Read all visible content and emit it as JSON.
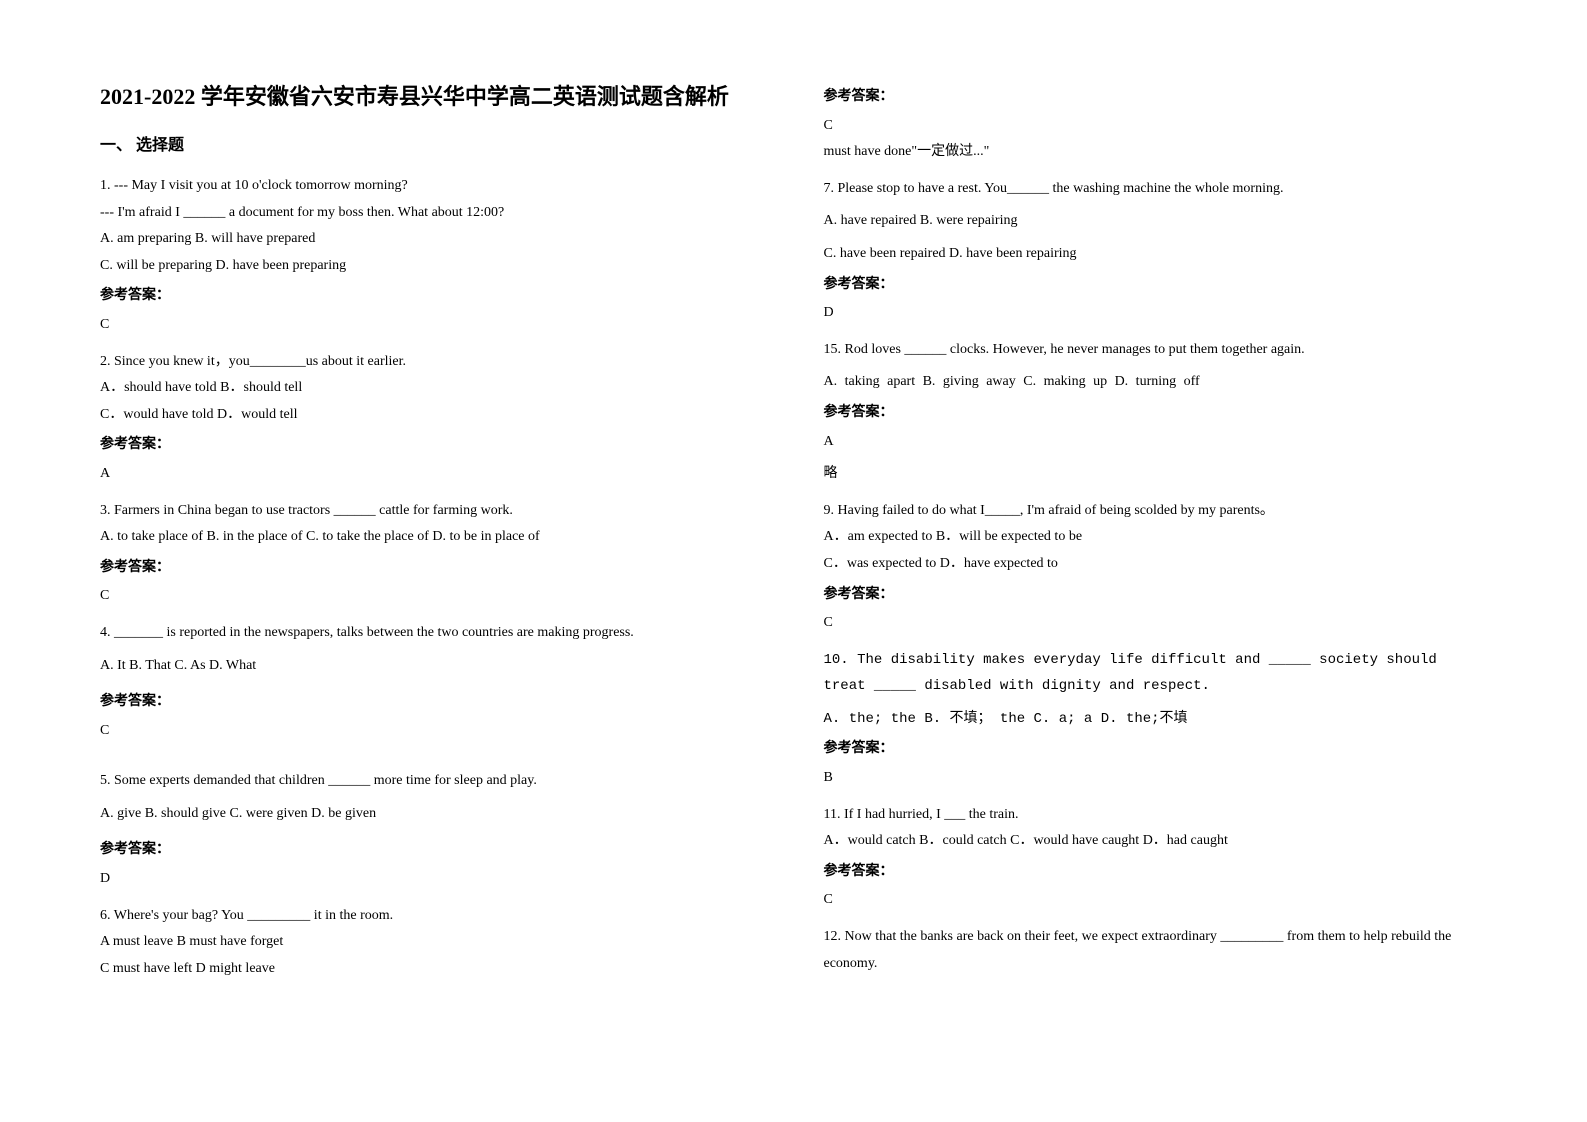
{
  "title": "2021-2022 学年安徽省六安市寿县兴华中学高二英语测试题含解析",
  "section_header": "一、 选择题",
  "answer_label": "参考答案：",
  "left": {
    "q1": {
      "line1": "1. --- May I visit you at 10 o'clock tomorrow morning?",
      "line2": "--- I'm afraid I ______ a document for my boss then. What about 12:00?",
      "optA": "A. am preparing    B. will have prepared",
      "optC": "C. will be preparing    D. have been preparing",
      "answer": "C"
    },
    "q2": {
      "line1": "2. Since you knew it，you________us about it earlier.",
      "optA": "A．should have told        B．should tell",
      "optC": "C．would have told         D．would tell",
      "answer": "A"
    },
    "q3": {
      "line1": "3. Farmers in China began to use tractors ______ cattle for farming work.",
      "options": "A. to take place of   B. in the place of   C. to take the place of   D. to be in place of",
      "answer": "C"
    },
    "q4": {
      "line1": "4. _______ is reported in the newspapers, talks between the two countries are making progress.",
      "options": "A. It       B. That       C. As     D. What",
      "answer": "C"
    },
    "q5": {
      "line1": "5.  Some experts demanded that children ______ more time for sleep and play.",
      "options": "     A. give                  B. should give        C. were given         D. be given",
      "answer": "D"
    },
    "q6": {
      "line1": "6. Where's your bag? You _________ it in the room.",
      "optA": "A must leave    B must have forget",
      "optC": "C must have left   D might leave"
    }
  },
  "right": {
    "q6": {
      "answer": "C",
      "explain": "must have done\"一定做过...\""
    },
    "q7": {
      "line1": "7. Please stop to have a rest. You______ the washing machine the whole morning.",
      "optA": "A. have repaired            B. were repairing",
      "optC": "C. have been repaired       D. have been repairing",
      "answer": "D"
    },
    "q8": {
      "line1": "15. Rod loves ______ clocks. However, he never manages to put them together again.",
      "options": "  A. taking apart          B. giving away          C. making up            D. turning off",
      "answer": "A",
      "extra": "略"
    },
    "q9": {
      "line1": "9. Having failed to do what I_____, I'm afraid of being scolded by my parents。",
      "optA": "A．am expected to   B．will be expected to be",
      "optC": "C．was expected to   D．have expected to",
      "answer": "C"
    },
    "q10": {
      "line1": "10.  The disability makes everyday life difficult and _____ society should treat _____ disabled with dignity and respect.",
      "options": "A. the; the          B. 不填； the          C.  a; a             D. the;不填",
      "answer": "B"
    },
    "q11": {
      "line1": "11. If I had hurried, I ___ the train.",
      "options": "  A．would catch  B．could catch  C．would have caught  D．had caught",
      "answer": " C"
    },
    "q12": {
      "line1": "12. Now that the banks are back on their feet, we expect extraordinary _________ from them to help rebuild the economy."
    }
  }
}
